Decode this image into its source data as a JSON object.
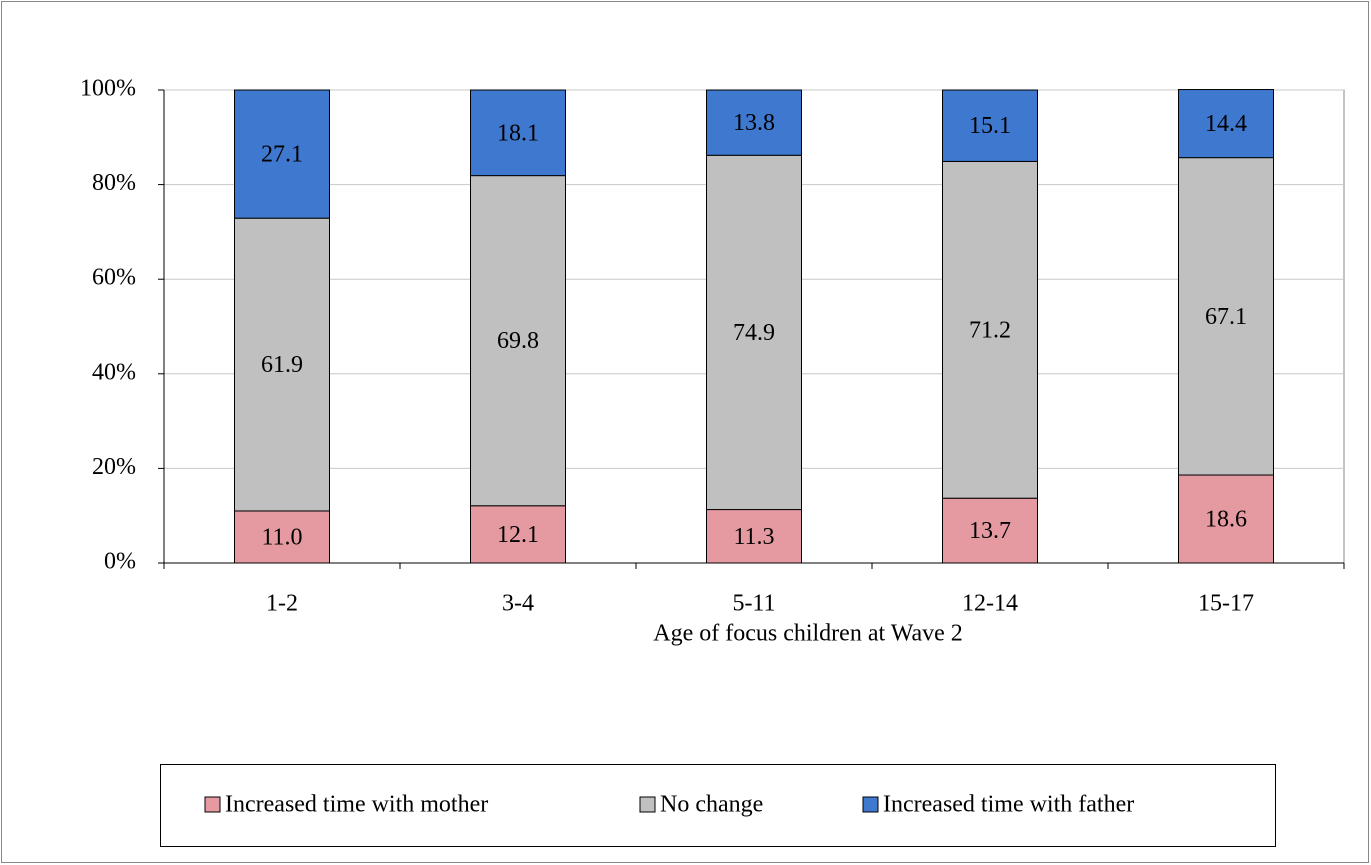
{
  "chart_data": {
    "type": "stacked-bar",
    "x_label": "Age of focus children at Wave 2",
    "categories": [
      "1-2",
      "3-4",
      "5-11",
      "12-14",
      "15-17"
    ],
    "series": [
      {
        "name": "Increased time with mother",
        "color": "#e59aa2",
        "values": [
          11.0,
          12.1,
          11.3,
          13.7,
          18.6
        ],
        "value_labels": [
          "11.0",
          "12.1",
          "11.3",
          "13.7",
          "18.6"
        ]
      },
      {
        "name": "No change",
        "color": "#c0c0c0",
        "values": [
          61.9,
          69.8,
          74.9,
          71.2,
          67.1
        ],
        "value_labels": [
          "61.9",
          "69.8",
          "74.9",
          "71.2",
          "67.1"
        ]
      },
      {
        "name": "Increased time with father",
        "color": "#3f78cf",
        "values": [
          27.1,
          18.1,
          13.8,
          15.1,
          14.4
        ],
        "value_labels": [
          "27.1",
          "18.1",
          "13.8",
          "15.1",
          "14.4"
        ]
      }
    ],
    "ylim": [
      0,
      100
    ],
    "yticks": [
      {
        "value": 0,
        "label": "0%"
      },
      {
        "value": 20,
        "label": "20%"
      },
      {
        "value": 40,
        "label": "40%"
      },
      {
        "value": 60,
        "label": "60%"
      },
      {
        "value": 80,
        "label": "80%"
      },
      {
        "value": 100,
        "label": "100%"
      }
    ],
    "grid": true,
    "legend": "bottom"
  }
}
